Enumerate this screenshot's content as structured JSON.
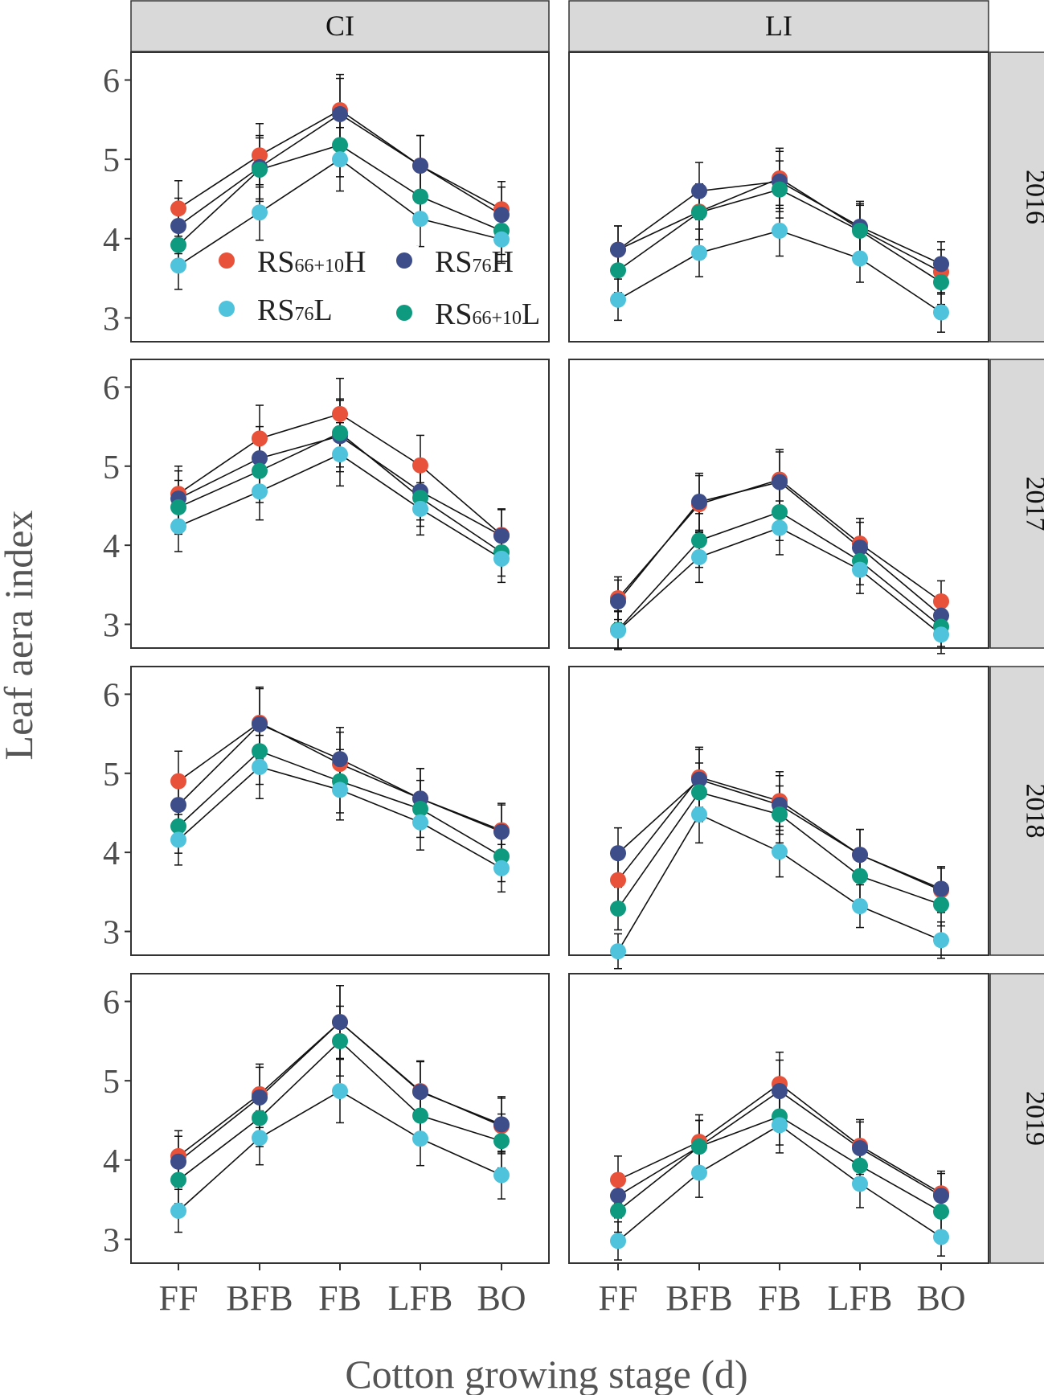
{
  "chart_data": {
    "type": "line",
    "xlabel": "Cotton growing stage (d)",
    "ylabel": "Leaf aera index",
    "categories": [
      "FF",
      "BFB",
      "FB",
      "LFB",
      "BO"
    ],
    "ylim": [
      2.7,
      6.35
    ],
    "yticks": [
      "3",
      "4",
      "5",
      "6"
    ],
    "columns": [
      "CI",
      "LI"
    ],
    "rows": [
      "2016",
      "2017",
      "2018",
      "2019"
    ],
    "legend": {
      "placement": "inside CI 2016 panel, bottom-left",
      "entries": [
        {
          "key": "RS66H",
          "base": "RS",
          "sub": "66+10",
          "suffix": "H",
          "color": "#e8513a"
        },
        {
          "key": "RS76H",
          "base": "RS",
          "sub": "76",
          "suffix": "H",
          "color": "#3c4d89"
        },
        {
          "key": "RS76L",
          "base": "RS",
          "sub": "76",
          "suffix": "L",
          "color": "#4fc3dc"
        },
        {
          "key": "RS66L",
          "base": "RS",
          "sub": "66+10",
          "suffix": "L",
          "color": "#0e9a7e"
        }
      ]
    },
    "panels": [
      {
        "row": "2016",
        "col": "CI",
        "series": [
          {
            "name": "RS66H",
            "values": [
              4.38,
              5.05,
              5.62,
              4.92,
              4.37
            ],
            "err": [
              0.35,
              0.4,
              0.45,
              0.38,
              0.35
            ]
          },
          {
            "name": "RS76H",
            "values": [
              4.16,
              4.9,
              5.57,
              4.92,
              4.3
            ],
            "err": [
              0.35,
              0.4,
              0.45,
              0.38,
              0.35
            ]
          },
          {
            "name": "RS66L",
            "values": [
              3.92,
              4.87,
              5.18,
              4.53,
              4.1
            ],
            "err": [
              0.3,
              0.4,
              0.4,
              0.35,
              0.3
            ]
          },
          {
            "name": "RS76L",
            "values": [
              3.66,
              4.33,
              5.0,
              4.25,
              3.99
            ],
            "err": [
              0.3,
              0.35,
              0.4,
              0.35,
              0.3
            ]
          }
        ]
      },
      {
        "row": "2016",
        "col": "LI",
        "series": [
          {
            "name": "RS66H",
            "values": [
              3.86,
              4.34,
              4.76,
              4.12,
              3.58
            ],
            "err": [
              0.3,
              0.35,
              0.38,
              0.32,
              0.28
            ]
          },
          {
            "name": "RS76H",
            "values": [
              3.86,
              4.6,
              4.72,
              4.15,
              3.68
            ],
            "err": [
              0.3,
              0.36,
              0.38,
              0.32,
              0.28
            ]
          },
          {
            "name": "RS66L",
            "values": [
              3.6,
              4.33,
              4.62,
              4.1,
              3.45
            ],
            "err": [
              0.28,
              0.34,
              0.36,
              0.32,
              0.28
            ]
          },
          {
            "name": "RS76L",
            "values": [
              3.23,
              3.82,
              4.1,
              3.75,
              3.07
            ],
            "err": [
              0.26,
              0.3,
              0.32,
              0.3,
              0.25
            ]
          }
        ]
      },
      {
        "row": "2017",
        "col": "CI",
        "series": [
          {
            "name": "RS66H",
            "values": [
              4.65,
              5.35,
              5.66,
              5.01,
              4.13
            ],
            "err": [
              0.35,
              0.42,
              0.45,
              0.38,
              0.33
            ]
          },
          {
            "name": "RS76H",
            "values": [
              4.59,
              5.1,
              5.38,
              4.68,
              4.12
            ],
            "err": [
              0.35,
              0.4,
              0.45,
              0.36,
              0.33
            ]
          },
          {
            "name": "RS66L",
            "values": [
              4.48,
              4.94,
              5.42,
              4.6,
              3.91
            ],
            "err": [
              0.34,
              0.4,
              0.43,
              0.36,
              0.3
            ]
          },
          {
            "name": "RS76L",
            "values": [
              4.24,
              4.68,
              5.15,
              4.46,
              3.83
            ],
            "err": [
              0.32,
              0.36,
              0.4,
              0.33,
              0.3
            ]
          }
        ]
      },
      {
        "row": "2017",
        "col": "LI",
        "series": [
          {
            "name": "RS66H",
            "values": [
              3.33,
              4.52,
              4.83,
              4.02,
              3.29
            ],
            "err": [
              0.27,
              0.36,
              0.38,
              0.32,
              0.26
            ]
          },
          {
            "name": "RS76H",
            "values": [
              3.29,
              4.55,
              4.8,
              3.97,
              3.11
            ],
            "err": [
              0.27,
              0.36,
              0.38,
              0.32,
              0.26
            ]
          },
          {
            "name": "RS66L",
            "values": [
              2.93,
              4.06,
              4.42,
              3.8,
              2.97
            ],
            "err": [
              0.24,
              0.34,
              0.36,
              0.3,
              0.25
            ]
          },
          {
            "name": "RS76L",
            "values": [
              2.92,
              3.85,
              4.22,
              3.69,
              2.87
            ],
            "err": [
              0.24,
              0.32,
              0.34,
              0.3,
              0.24
            ]
          }
        ]
      },
      {
        "row": "2018",
        "col": "CI",
        "series": [
          {
            "name": "RS66H",
            "values": [
              4.9,
              5.64,
              5.12,
              4.68,
              4.28
            ],
            "err": [
              0.38,
              0.45,
              0.4,
              0.38,
              0.34
            ]
          },
          {
            "name": "RS76H",
            "values": [
              4.6,
              5.62,
              5.18,
              4.68,
              4.26
            ],
            "err": [
              0.36,
              0.45,
              0.4,
              0.38,
              0.34
            ]
          },
          {
            "name": "RS66L",
            "values": [
              4.33,
              5.28,
              4.9,
              4.55,
              3.95
            ],
            "err": [
              0.34,
              0.42,
              0.4,
              0.36,
              0.32
            ]
          },
          {
            "name": "RS76L",
            "values": [
              4.16,
              5.08,
              4.79,
              4.38,
              3.8
            ],
            "err": [
              0.32,
              0.4,
              0.38,
              0.35,
              0.3
            ]
          }
        ]
      },
      {
        "row": "2018",
        "col": "LI",
        "series": [
          {
            "name": "RS66H",
            "values": [
              3.65,
              4.95,
              4.65,
              3.97,
              3.52
            ],
            "err": [
              0.3,
              0.38,
              0.37,
              0.32,
              0.28
            ]
          },
          {
            "name": "RS76H",
            "values": [
              3.99,
              4.92,
              4.6,
              3.97,
              3.54
            ],
            "err": [
              0.32,
              0.38,
              0.37,
              0.32,
              0.28
            ]
          },
          {
            "name": "RS66L",
            "values": [
              3.29,
              4.76,
              4.48,
              3.7,
              3.34
            ],
            "err": [
              0.27,
              0.37,
              0.36,
              0.3,
              0.27
            ]
          },
          {
            "name": "RS76L",
            "values": [
              2.75,
              4.48,
              4.01,
              3.32,
              2.89
            ],
            "err": [
              0.22,
              0.36,
              0.32,
              0.27,
              0.23
            ]
          }
        ]
      },
      {
        "row": "2019",
        "col": "CI",
        "series": [
          {
            "name": "RS66H",
            "values": [
              4.05,
              4.83,
              5.74,
              4.87,
              4.43
            ],
            "err": [
              0.32,
              0.38,
              0.46,
              0.38,
              0.35
            ]
          },
          {
            "name": "RS76H",
            "values": [
              3.98,
              4.79,
              5.74,
              4.86,
              4.45
            ],
            "err": [
              0.32,
              0.38,
              0.46,
              0.38,
              0.35
            ]
          },
          {
            "name": "RS66L",
            "values": [
              3.75,
              4.53,
              5.5,
              4.56,
              4.24
            ],
            "err": [
              0.3,
              0.36,
              0.44,
              0.36,
              0.34
            ]
          },
          {
            "name": "RS76L",
            "values": [
              3.36,
              4.28,
              4.87,
              4.27,
              3.81
            ],
            "err": [
              0.27,
              0.34,
              0.4,
              0.34,
              0.3
            ]
          }
        ]
      },
      {
        "row": "2019",
        "col": "LI",
        "series": [
          {
            "name": "RS66H",
            "values": [
              3.75,
              4.23,
              4.96,
              4.18,
              3.58
            ],
            "err": [
              0.3,
              0.34,
              0.4,
              0.33,
              0.28
            ]
          },
          {
            "name": "RS76H",
            "values": [
              3.55,
              4.17,
              4.87,
              4.15,
              3.55
            ],
            "err": [
              0.28,
              0.33,
              0.39,
              0.33,
              0.28
            ]
          },
          {
            "name": "RS66L",
            "values": [
              3.36,
              4.17,
              4.55,
              3.93,
              3.35
            ],
            "err": [
              0.27,
              0.33,
              0.36,
              0.31,
              0.27
            ]
          },
          {
            "name": "RS76L",
            "values": [
              2.98,
              3.84,
              4.44,
              3.7,
              3.03
            ],
            "err": [
              0.24,
              0.31,
              0.35,
              0.3,
              0.24
            ]
          }
        ]
      }
    ]
  }
}
